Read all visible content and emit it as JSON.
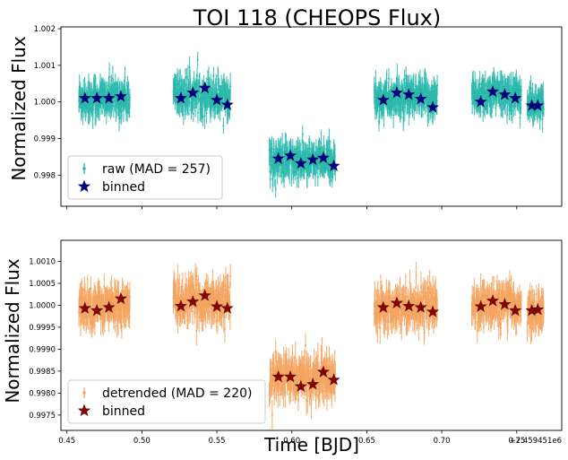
{
  "chart_data": [
    {
      "type": "scatter",
      "title": "TOI 118 (CHEOPS Flux)",
      "xlabel": "",
      "ylabel": "Normalized Flux",
      "xlim": [
        0.446,
        0.78
      ],
      "ylim": [
        0.99715,
        1.00205
      ],
      "xticks": [
        0.45,
        0.5,
        0.55,
        0.6,
        0.65,
        0.7,
        0.75
      ],
      "yticks": [
        0.998,
        0.999,
        1.0,
        1.001,
        1.002
      ],
      "ytick_labels": [
        "0.998",
        "0.999",
        "1.000",
        "1.001",
        "1.002"
      ],
      "show_xtick_labels": false,
      "legend": {
        "placement": "lower-left",
        "entries": [
          {
            "label": "raw (MAD = 257)",
            "marker": "errorbar-dot",
            "color": "#2ab8ad"
          },
          {
            "label": "binned",
            "marker": "star",
            "color": "#00008b"
          }
        ]
      },
      "series": [
        {
          "name": "raw (MAD = 257)",
          "kind": "raw",
          "color": "#2ab8ad",
          "segments": [
            {
              "x_start": 0.458,
              "x_end": 0.492,
              "level": 1.0001,
              "scatter": 0.00045,
              "err": 0.0003
            },
            {
              "x_start": 0.521,
              "x_end": 0.559,
              "level": 1.0002,
              "scatter": 0.0005,
              "err": 0.0003
            },
            {
              "x_start": 0.585,
              "x_end": 0.629,
              "level": 0.99838,
              "scatter": 0.00045,
              "err": 0.0003
            },
            {
              "x_start": 0.655,
              "x_end": 0.697,
              "level": 1.0001,
              "scatter": 0.00045,
              "err": 0.0003
            },
            {
              "x_start": 0.72,
              "x_end": 0.753,
              "level": 1.0002,
              "scatter": 0.00045,
              "err": 0.0003
            },
            {
              "x_start": 0.757,
              "x_end": 0.768,
              "level": 0.9999,
              "scatter": 0.0004,
              "err": 0.0003
            }
          ]
        },
        {
          "name": "binned",
          "kind": "binned",
          "color": "#00008b",
          "x": [
            0.462,
            0.47,
            0.478,
            0.486,
            0.526,
            0.534,
            0.542,
            0.55,
            0.557,
            0.591,
            0.599,
            0.606,
            0.614,
            0.621,
            0.628,
            0.661,
            0.67,
            0.678,
            0.686,
            0.694,
            0.726,
            0.734,
            0.742,
            0.749,
            0.76,
            0.764
          ],
          "y": [
            1.0001,
            1.0001,
            1.0001,
            1.00015,
            1.0001,
            1.00025,
            1.00038,
            1.00005,
            0.99992,
            0.99845,
            0.99853,
            0.99832,
            0.99842,
            0.99847,
            0.99825,
            1.00005,
            1.00025,
            1.0002,
            1.00008,
            0.99985,
            1.0,
            1.00028,
            1.0002,
            1.0001,
            0.9999,
            0.9999
          ]
        }
      ]
    },
    {
      "type": "scatter",
      "title": "",
      "xlabel": "Time [BJD]",
      "ylabel": "Normalized Flux",
      "x_offset_label": "+2.459451e6",
      "xlim": [
        0.446,
        0.78
      ],
      "ylim": [
        0.99715,
        1.00148
      ],
      "xticks": [
        0.45,
        0.5,
        0.55,
        0.6,
        0.65,
        0.7,
        0.75
      ],
      "xtick_labels": [
        "0.45",
        "0.50",
        "0.55",
        "0.60",
        "0.65",
        "0.70",
        "0.75"
      ],
      "yticks": [
        0.9975,
        0.998,
        0.9985,
        0.999,
        0.9995,
        1.0,
        1.0005,
        1.001
      ],
      "ytick_labels": [
        "0.9975",
        "0.9980",
        "0.9985",
        "0.9990",
        "0.9995",
        "1.0000",
        "1.0005",
        "1.0010"
      ],
      "show_xtick_labels": true,
      "legend": {
        "placement": "lower-left",
        "entries": [
          {
            "label": "detrended (MAD = 220)",
            "marker": "errorbar-dot",
            "color": "#f4a460"
          },
          {
            "label": "binned",
            "marker": "star",
            "color": "#8b0000"
          }
        ]
      },
      "series": [
        {
          "name": "detrended (MAD = 220)",
          "kind": "raw",
          "color": "#f4a460",
          "segments": [
            {
              "x_start": 0.458,
              "x_end": 0.492,
              "level": 1.0,
              "scatter": 0.0004,
              "err": 0.00028
            },
            {
              "x_start": 0.521,
              "x_end": 0.559,
              "level": 1.0001,
              "scatter": 0.00045,
              "err": 0.00028
            },
            {
              "x_start": 0.585,
              "x_end": 0.629,
              "level": 0.99835,
              "scatter": 0.00045,
              "err": 0.00028
            },
            {
              "x_start": 0.655,
              "x_end": 0.697,
              "level": 1.0,
              "scatter": 0.0004,
              "err": 0.00028
            },
            {
              "x_start": 0.72,
              "x_end": 0.753,
              "level": 1.0,
              "scatter": 0.0004,
              "err": 0.00028
            },
            {
              "x_start": 0.757,
              "x_end": 0.768,
              "level": 0.99985,
              "scatter": 0.0004,
              "err": 0.00028
            }
          ]
        },
        {
          "name": "binned",
          "kind": "binned",
          "color": "#8b0000",
          "x": [
            0.462,
            0.47,
            0.478,
            0.486,
            0.526,
            0.534,
            0.542,
            0.55,
            0.557,
            0.591,
            0.599,
            0.606,
            0.614,
            0.621,
            0.628,
            0.661,
            0.67,
            0.678,
            0.686,
            0.694,
            0.726,
            0.734,
            0.742,
            0.749,
            0.76,
            0.764
          ],
          "y": [
            0.99993,
            0.99988,
            0.99995,
            1.00015,
            0.99998,
            1.00008,
            1.00022,
            0.99997,
            0.99993,
            0.99837,
            0.99837,
            0.99815,
            0.9982,
            0.99848,
            0.9983,
            0.99995,
            1.00005,
            0.99998,
            0.99995,
            0.99985,
            0.99997,
            1.0001,
            1.00002,
            0.99988,
            0.99988,
            0.9999
          ]
        }
      ]
    }
  ]
}
